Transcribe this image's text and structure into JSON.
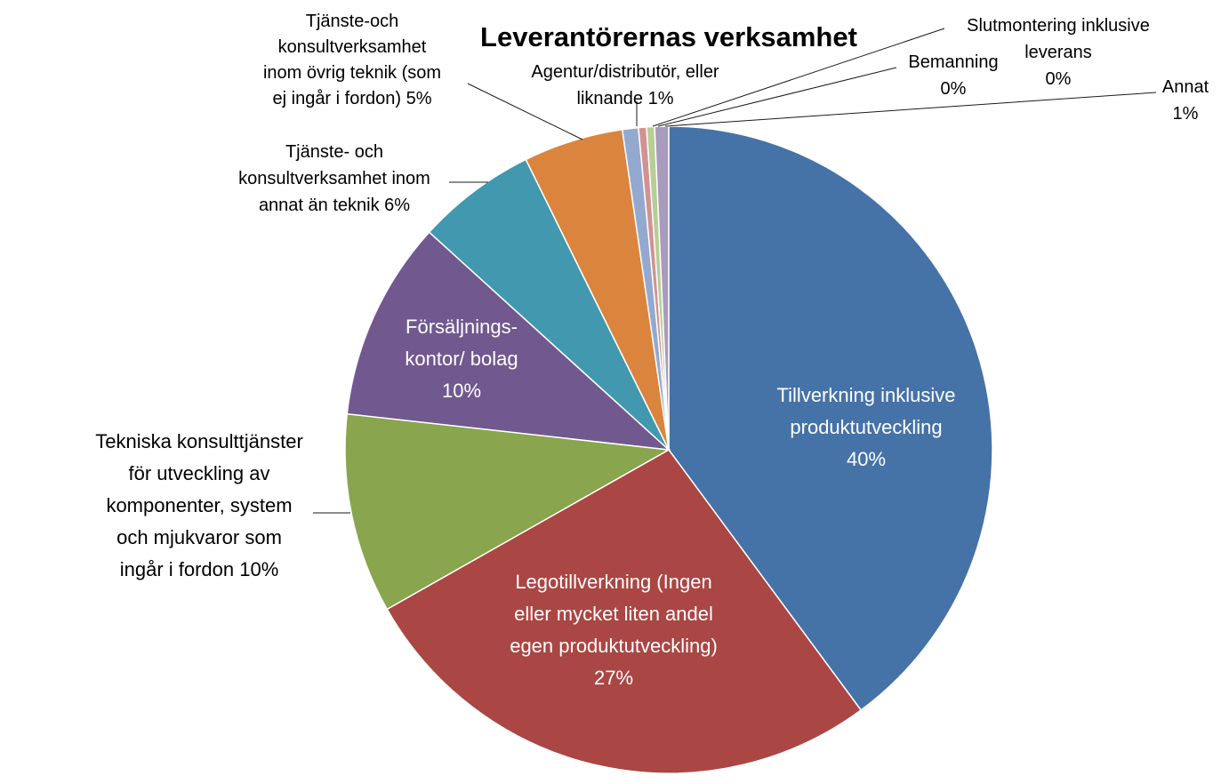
{
  "chart_data": {
    "type": "pie",
    "title": "Leverantörernas verksamhet",
    "slices": [
      {
        "label": "Tillverkning inklusive produktutveckling",
        "value": 40,
        "value_label": "40%",
        "color": "#4572A7"
      },
      {
        "label": "Legotillverkning (Ingen eller mycket liten andel egen produktutveckling)",
        "value": 27,
        "value_label": "27%",
        "color": "#AA4643"
      },
      {
        "label": "Tekniska konsulttjänster för utveckling av komponenter, system och mjukvaror som ingår i fordon",
        "value": 10,
        "value_label": "10%",
        "color": "#89A54E"
      },
      {
        "label": "Försäljnings- kontor/ bolag",
        "value": 10,
        "value_label": "10%",
        "color": "#71588F"
      },
      {
        "label": "Tjänste- och konsultverksamhet inom annat än teknik",
        "value": 6,
        "value_label": "6%",
        "color": "#4198AF"
      },
      {
        "label": "Tjänste-och konsultverksamhet inom övrig teknik (som ej ingår i fordon)",
        "value": 5,
        "value_label": "5%",
        "color": "#DB843D"
      },
      {
        "label": "Agentur/distributör, eller liknande",
        "value": 0.8,
        "value_label": "1%",
        "color": "#93A9CF"
      },
      {
        "label": "Slutmontering inklusive leverans",
        "value": 0.4,
        "value_label": "0%",
        "color": "#D19392"
      },
      {
        "label": "Bemanning",
        "value": 0.4,
        "value_label": "0%",
        "color": "#B9CD96"
      },
      {
        "label": "Annat",
        "value": 0.7,
        "value_label": "1%",
        "color": "#A99BBD"
      }
    ],
    "legend": "none"
  }
}
